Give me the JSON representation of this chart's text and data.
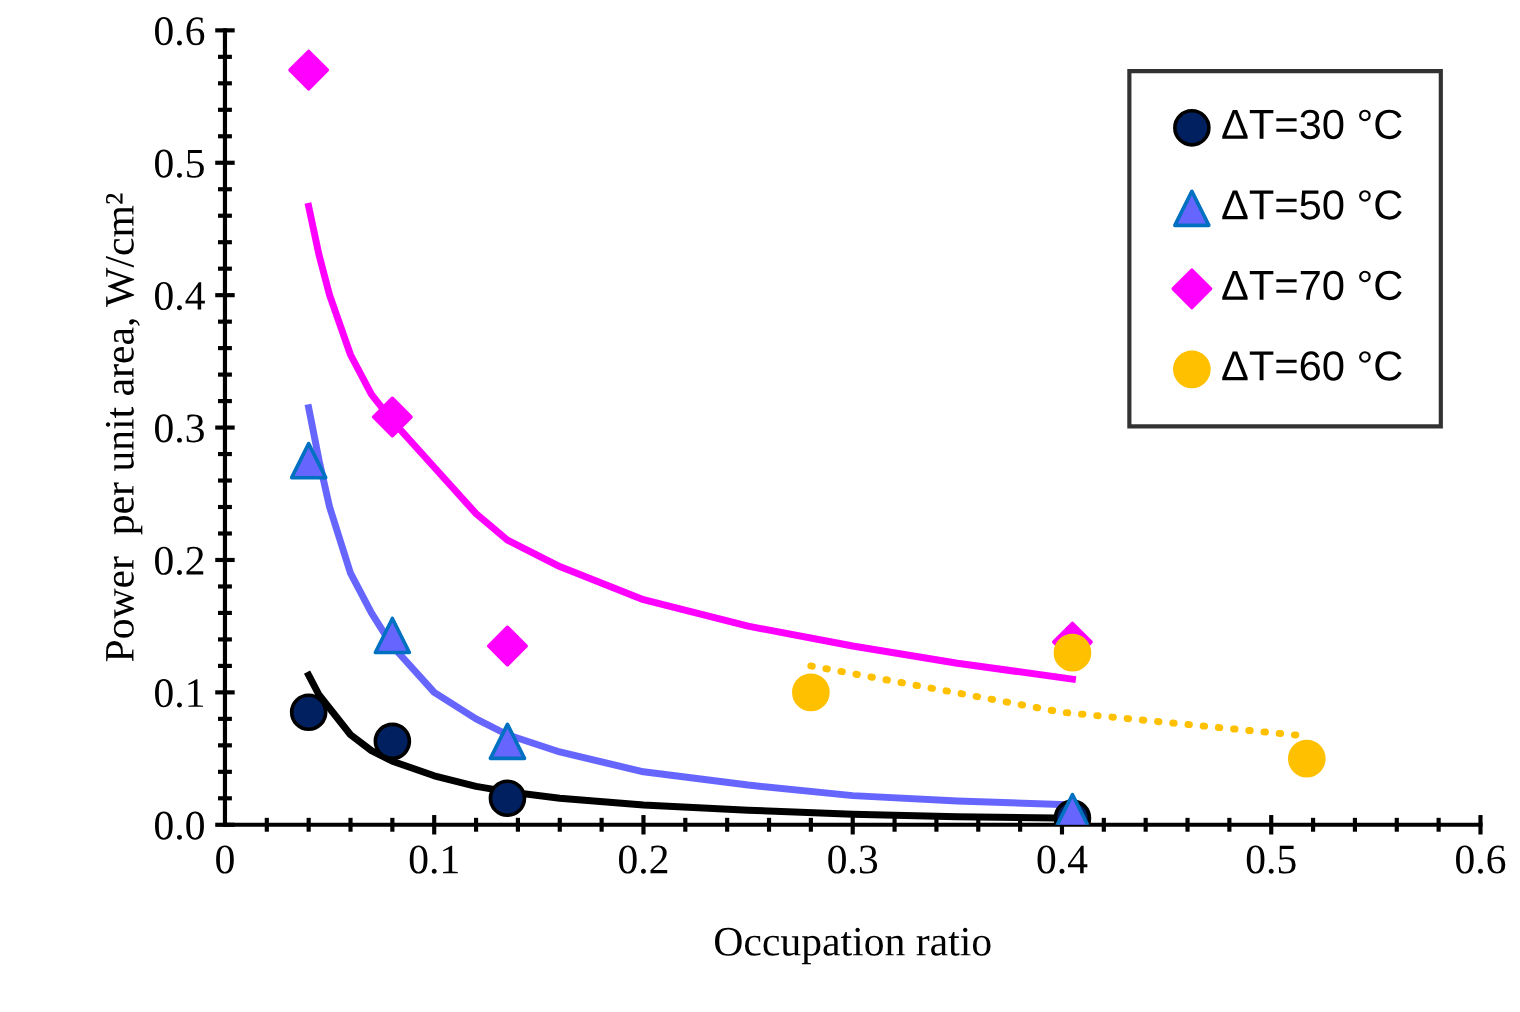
{
  "chart_data": {
    "type": "scatter",
    "xlabel": "Occupation ratio",
    "ylabel": "Power  per unit area, W/cm²",
    "xlim": [
      0,
      0.6
    ],
    "ylim": [
      0,
      0.6
    ],
    "xticks": [
      0,
      0.1,
      0.2,
      0.3,
      0.4,
      0.5,
      0.6,
      {
        "value": 0.02,
        "label": null
      },
      {
        "value": 0.04,
        "label": null
      },
      {
        "value": 0.06,
        "label": null
      },
      {
        "value": 0.08,
        "label": null
      },
      {
        "value": 0.12,
        "label": null
      },
      {
        "value": 0.14,
        "label": null
      },
      {
        "value": 0.16,
        "label": null
      },
      {
        "value": 0.18,
        "label": null
      },
      {
        "value": 0.22,
        "label": null
      },
      {
        "value": 0.24,
        "label": null
      },
      {
        "value": 0.26,
        "label": null
      },
      {
        "value": 0.28,
        "label": null
      },
      {
        "value": 0.32,
        "label": null
      },
      {
        "value": 0.34,
        "label": null
      },
      {
        "value": 0.36,
        "label": null
      },
      {
        "value": 0.38,
        "label": null
      },
      {
        "value": 0.42,
        "label": null
      },
      {
        "value": 0.44,
        "label": null
      },
      {
        "value": 0.46,
        "label": null
      },
      {
        "value": 0.48,
        "label": null
      },
      {
        "value": 0.52,
        "label": null
      },
      {
        "value": 0.54,
        "label": null
      },
      {
        "value": 0.56,
        "label": null
      },
      {
        "value": 0.58,
        "label": null
      }
    ],
    "yticks": [
      {
        "value": 0,
        "label": "0.0"
      },
      0.1,
      0.2,
      0.3,
      0.4,
      0.5,
      0.6,
      {
        "value": 0.02,
        "label": null
      },
      {
        "value": 0.04,
        "label": null
      },
      {
        "value": 0.06,
        "label": null
      },
      {
        "value": 0.08,
        "label": null
      },
      {
        "value": 0.12,
        "label": null
      },
      {
        "value": 0.14,
        "label": null
      },
      {
        "value": 0.16,
        "label": null
      },
      {
        "value": 0.18,
        "label": null
      },
      {
        "value": 0.22,
        "label": null
      },
      {
        "value": 0.24,
        "label": null
      },
      {
        "value": 0.26,
        "label": null
      },
      {
        "value": 0.28,
        "label": null
      },
      {
        "value": 0.32,
        "label": null
      },
      {
        "value": 0.34,
        "label": null
      },
      {
        "value": 0.36,
        "label": null
      },
      {
        "value": 0.38,
        "label": null
      },
      {
        "value": 0.42,
        "label": null
      },
      {
        "value": 0.44,
        "label": null
      },
      {
        "value": 0.46,
        "label": null
      },
      {
        "value": 0.48,
        "label": null
      },
      {
        "value": 0.52,
        "label": null
      },
      {
        "value": 0.54,
        "label": null
      },
      {
        "value": 0.56,
        "label": null
      },
      {
        "value": 0.58,
        "label": null
      }
    ],
    "grid": false,
    "legend": "top right",
    "series": [
      {
        "type": "line",
        "color": "#000000",
        "line_style": "solid",
        "marker": "none",
        "x": [
          0.04,
          0.045,
          0.06,
          0.07,
          0.08,
          0.1,
          0.12,
          0.135,
          0.16,
          0.2,
          0.25,
          0.3,
          0.35,
          0.405
        ],
        "values": [
          0.113,
          0.098,
          0.068,
          0.056,
          0.048,
          0.037,
          0.029,
          0.025,
          0.02,
          0.015,
          0.011,
          0.008,
          0.006,
          0.005
        ]
      },
      {
        "type": "line",
        "color": "#6666ff",
        "line_style": "solid",
        "marker": "none",
        "x": [
          0.04,
          0.045,
          0.05,
          0.06,
          0.07,
          0.08,
          0.1,
          0.12,
          0.135,
          0.16,
          0.2,
          0.25,
          0.3,
          0.35,
          0.405
        ],
        "values": [
          0.315,
          0.275,
          0.24,
          0.19,
          0.16,
          0.135,
          0.1,
          0.08,
          0.068,
          0.055,
          0.04,
          0.03,
          0.022,
          0.018,
          0.015
        ]
      },
      {
        "type": "line",
        "color": "#ff00ff",
        "line_style": "solid",
        "marker": "none",
        "x": [
          0.04,
          0.045,
          0.05,
          0.06,
          0.07,
          0.08,
          0.1,
          0.12,
          0.135,
          0.16,
          0.2,
          0.25,
          0.3,
          0.35,
          0.405
        ],
        "values": [
          0.467,
          0.43,
          0.4,
          0.355,
          0.325,
          0.305,
          0.27,
          0.235,
          0.215,
          0.195,
          0.17,
          0.15,
          0.135,
          0.122,
          0.11
        ]
      },
      {
        "type": "line",
        "color": "#ffc000",
        "line_style": "dotted",
        "marker": "none",
        "x": [
          0.28,
          0.4,
          0.517
        ],
        "values": [
          0.12,
          0.085,
          0.067
        ]
      },
      {
        "name": "ΔT=30 °C",
        "color": "#002060",
        "marker": "circle",
        "x": [
          0.04,
          0.08,
          0.135,
          0.405
        ],
        "values": [
          0.085,
          0.063,
          0.02,
          0.005
        ]
      },
      {
        "name": "ΔT=50 °C",
        "color": "#6666ff",
        "marker": "triangle",
        "x": [
          0.04,
          0.08,
          0.135,
          0.405
        ],
        "values": [
          0.275,
          0.143,
          0.063,
          0.01
        ]
      },
      {
        "name": "ΔT=70 °C",
        "color": "#ff00ff",
        "marker": "diamond",
        "x": [
          0.04,
          0.08,
          0.135,
          0.405
        ],
        "values": [
          0.57,
          0.308,
          0.135,
          0.138
        ]
      },
      {
        "name": "ΔT=60 °C",
        "color": "#ffc000",
        "marker": "circle",
        "x": [
          0.28,
          0.405,
          0.517
        ],
        "values": [
          0.1,
          0.13,
          0.05
        ]
      }
    ]
  }
}
